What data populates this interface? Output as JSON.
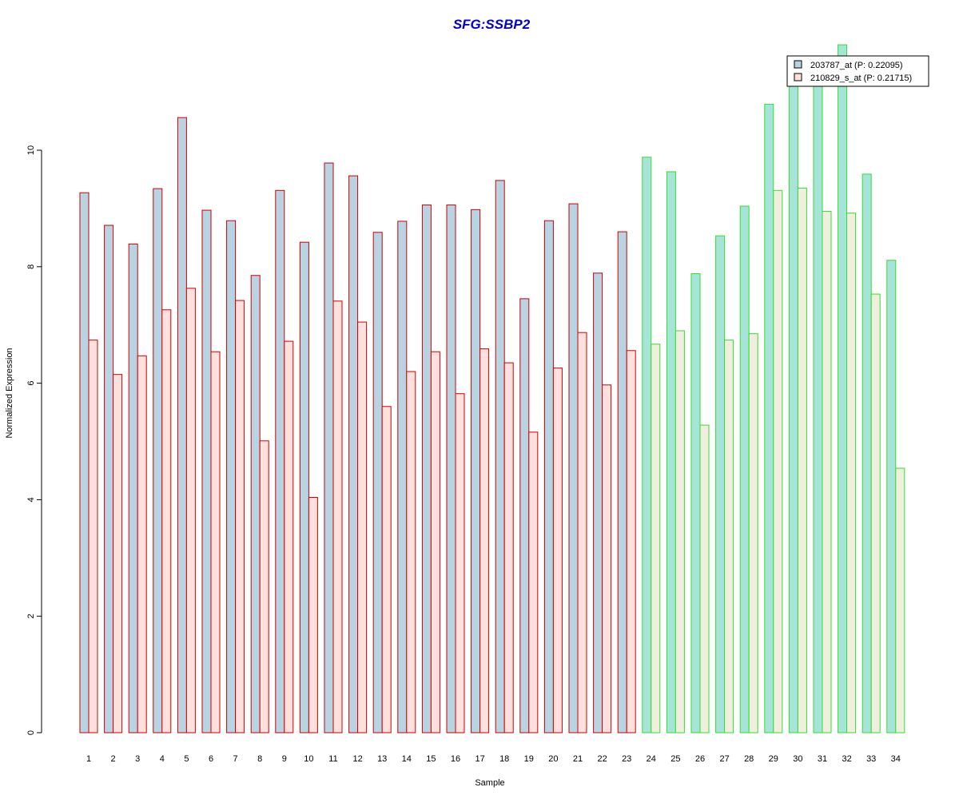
{
  "chart_data": {
    "type": "bar",
    "title": "SFG:SSBP2",
    "xlabel": "Sample",
    "ylabel": "Normalized Expression",
    "ylim": [
      0,
      12
    ],
    "yticks": [
      0,
      2,
      4,
      6,
      8,
      10
    ],
    "categories": [
      "1",
      "2",
      "3",
      "4",
      "5",
      "6",
      "7",
      "8",
      "9",
      "10",
      "11",
      "12",
      "13",
      "14",
      "15",
      "16",
      "17",
      "18",
      "19",
      "20",
      "21",
      "22",
      "23",
      "24",
      "25",
      "26",
      "27",
      "28",
      "29",
      "30",
      "31",
      "32",
      "33",
      "34"
    ],
    "group1_count": 23,
    "series": [
      {
        "name": "203787_at (P: 0.22095)",
        "values": [
          9.27,
          8.71,
          8.39,
          9.34,
          10.56,
          8.97,
          8.79,
          7.85,
          9.31,
          8.42,
          9.78,
          9.56,
          8.59,
          8.78,
          9.06,
          9.06,
          8.98,
          9.48,
          7.45,
          8.79,
          9.08,
          7.89,
          8.6,
          9.88,
          9.63,
          7.88,
          8.53,
          9.04,
          10.79,
          11.11,
          11.11,
          11.81,
          9.59,
          8.11
        ]
      },
      {
        "name": "210829_s_at (P: 0.21715)",
        "values": [
          6.74,
          6.15,
          6.47,
          7.26,
          7.63,
          6.54,
          7.42,
          5.01,
          6.72,
          4.04,
          7.41,
          7.05,
          5.6,
          6.2,
          6.54,
          5.82,
          6.59,
          6.35,
          5.16,
          6.26,
          6.87,
          5.97,
          6.56,
          6.67,
          6.9,
          5.28,
          6.74,
          6.85,
          9.31,
          9.35,
          8.95,
          8.92,
          7.53,
          4.54
        ]
      }
    ],
    "colors": {
      "title": "#0000cc",
      "group1_border": "#cc0000",
      "group2_border": "#33dd33",
      "group1_series1_fill": "#b8d4e3",
      "group1_series2_fill": "#ffe0dc",
      "group2_series1_fill": "#a6e4d8",
      "group2_series2_fill": "#f0eedc",
      "legend_series1_fill": "#b8d4e3",
      "legend_series2_fill": "#ffe0dc"
    },
    "legend_position": "top-right",
    "grid": false
  }
}
